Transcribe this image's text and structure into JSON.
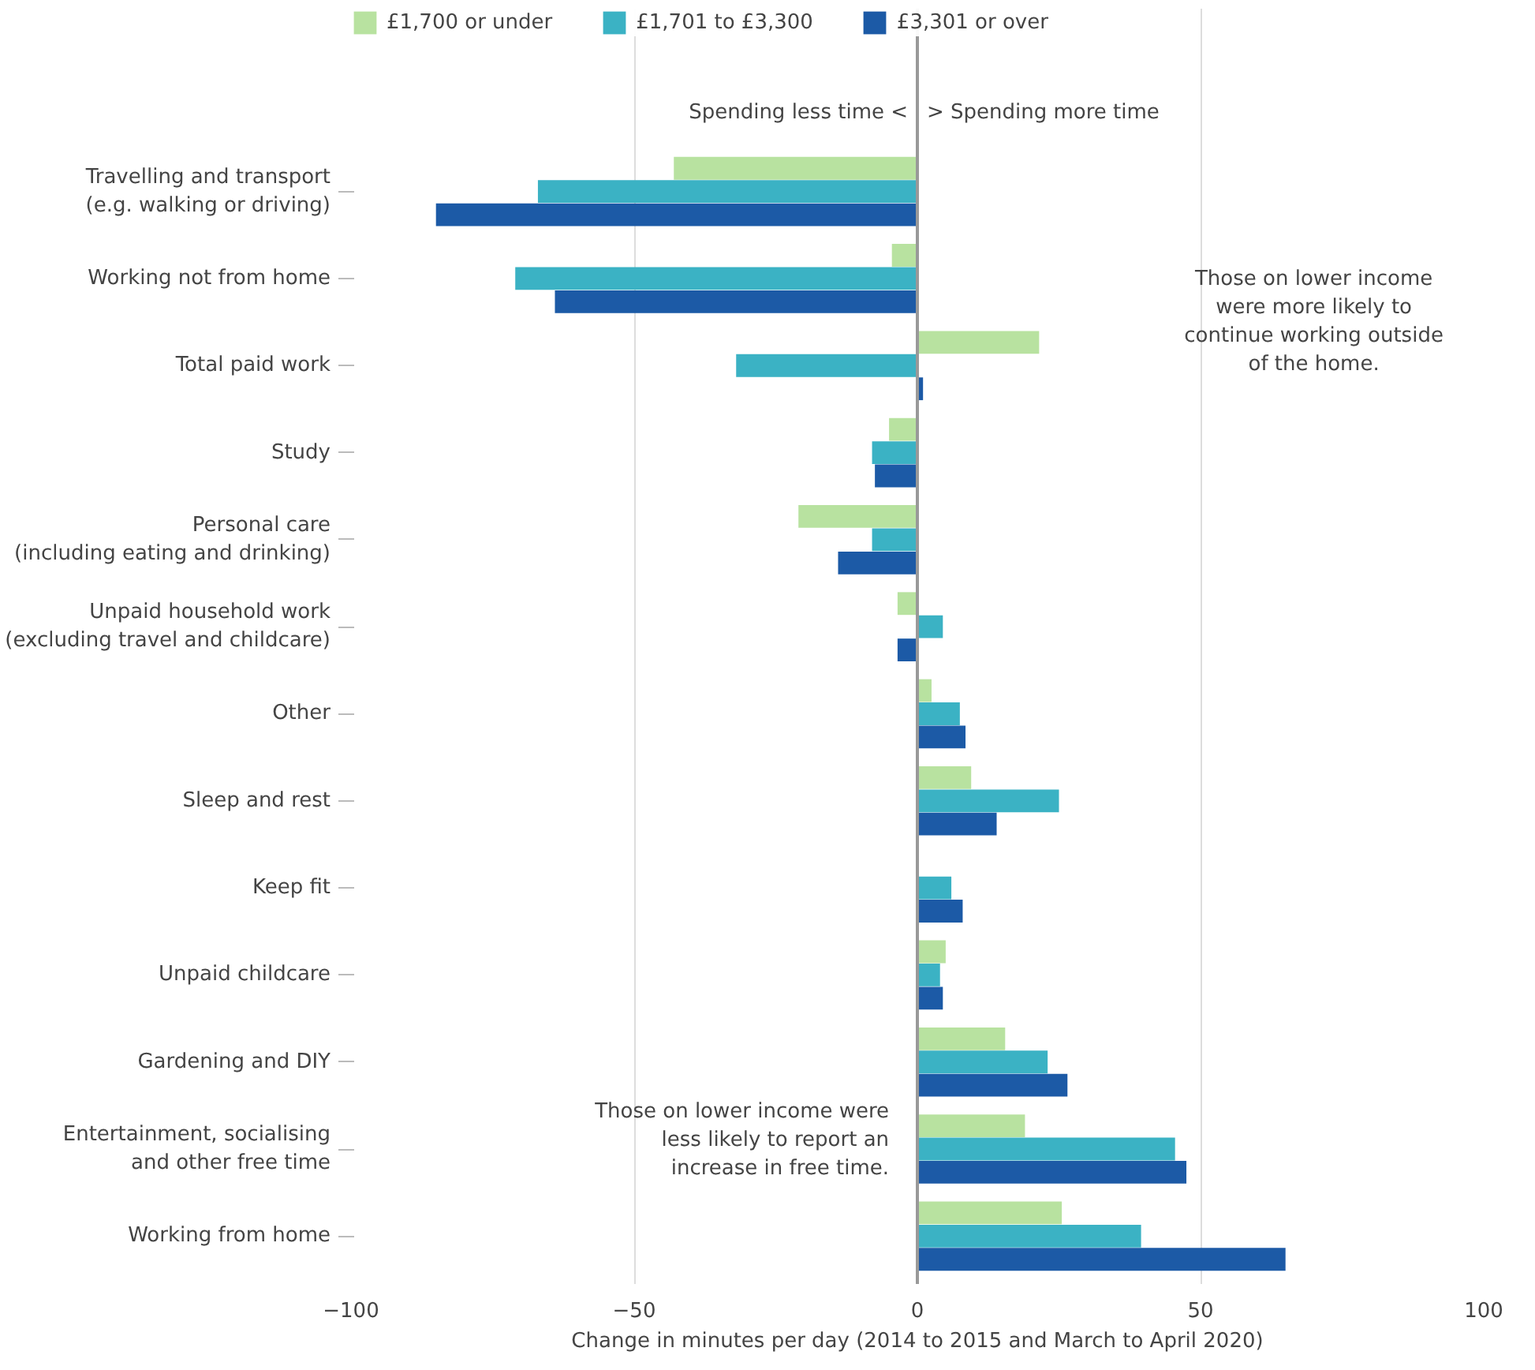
{
  "chart_data": {
    "type": "bar",
    "orientation": "horizontal",
    "categories": [
      "Travelling and transport\n(e.g. walking or driving)",
      "Working not from home",
      "Total paid work",
      "Study",
      "Personal care\n(including eating and drinking)",
      "Unpaid household work\n(excluding travel and childcare)",
      "Other",
      "Sleep and rest",
      "Keep fit",
      "Unpaid childcare",
      "Gardening and DIY",
      "Entertainment, socialising\nand other free time",
      "Working from home"
    ],
    "series": [
      {
        "name": "£1,700 or under",
        "color": "#b8e2a0",
        "values": [
          -43,
          -4.5,
          21.5,
          -5,
          -21,
          -3.5,
          2.5,
          9.5,
          0,
          5,
          15.5,
          19,
          25.5
        ]
      },
      {
        "name": "£1,701 to £3,300",
        "color": "#3bb2c4",
        "values": [
          -67,
          -71,
          -32,
          -8,
          -8,
          4.5,
          7.5,
          25,
          6,
          4,
          23,
          45.5,
          39.5
        ]
      },
      {
        "name": "£3,301 or over",
        "color": "#1c5aa6",
        "values": [
          -85,
          -64,
          1,
          -7.5,
          -14,
          -3.5,
          8.5,
          14,
          8,
          4.5,
          26.5,
          47.5,
          65
        ]
      }
    ],
    "xlabel": "Change in minutes per day (2014 to 2015 and March to April 2020)",
    "xlim": [
      -100,
      100
    ],
    "xticks": [
      -100,
      -50,
      0,
      50,
      100
    ],
    "grid": "x",
    "legend": "top left",
    "ref_lines": [
      {
        "axis": "x",
        "value": 0,
        "color": "#999999"
      }
    ],
    "annotations": [
      "Spending less time <",
      "> Spending more time",
      "Those on lower income\nwere more likely to\ncontinue working outside\nof the home.",
      "Those on lower income were\nless likely to report an\nincrease in free time."
    ]
  }
}
